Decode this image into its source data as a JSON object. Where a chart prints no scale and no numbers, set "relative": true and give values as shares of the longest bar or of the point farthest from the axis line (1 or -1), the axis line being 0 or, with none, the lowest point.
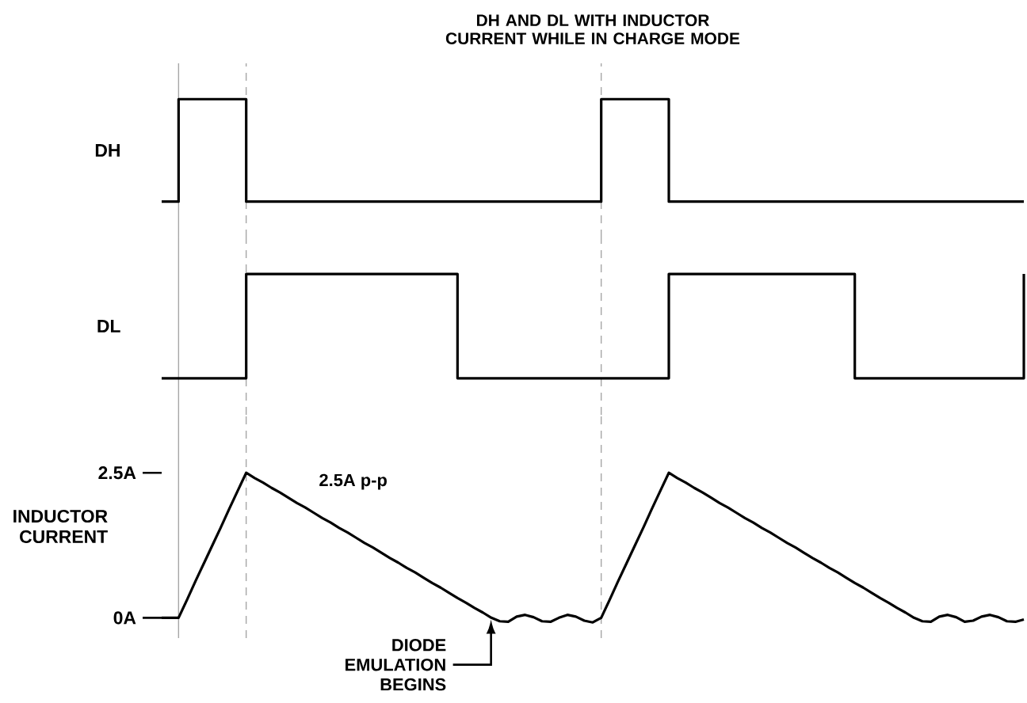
{
  "chart_data": [
    {
      "type": "step",
      "title": "DH AND DL WITH  INDUCTOR CURRENT WHILE IN CHARGE MODE",
      "ylabel": "DH",
      "relative": true,
      "tick_labels": false,
      "color": "#000000",
      "categories": [
        null,
        null,
        null,
        null,
        null,
        null,
        null,
        null,
        null,
        null,
        null,
        null,
        null,
        null,
        null,
        null,
        null,
        null,
        null,
        null,
        null,
        null,
        null,
        null,
        null,
        null,
        null,
        null,
        null,
        null,
        null,
        null,
        null,
        null,
        null,
        null,
        null,
        null,
        null,
        null,
        null,
        null,
        null,
        null,
        null,
        null,
        null,
        null,
        null,
        null,
        null,
        null,
        null,
        null,
        null,
        null,
        null,
        null,
        null,
        null,
        null,
        null,
        null,
        null,
        null,
        null,
        null,
        null,
        null,
        null,
        null,
        null,
        null,
        null,
        null,
        null,
        null,
        null,
        null,
        null,
        null,
        null,
        null,
        null,
        null,
        null,
        null,
        null,
        null,
        null,
        null,
        null,
        null,
        null,
        null,
        null,
        null,
        null,
        null,
        null,
        null,
        null,
        null
      ],
      "values": [
        0,
        0,
        1,
        1,
        1,
        1,
        1,
        1,
        1,
        1,
        0,
        0,
        0,
        0,
        0,
        0,
        0,
        0,
        0,
        0,
        0,
        0,
        0,
        0,
        0,
        0,
        0,
        0,
        0,
        0,
        0,
        0,
        0,
        0,
        0,
        0,
        0,
        0,
        0,
        0,
        0,
        0,
        0,
        0,
        0,
        0,
        0,
        0,
        0,
        0,
        0,
        0,
        1,
        1,
        1,
        1,
        1,
        1,
        1,
        1,
        0,
        0,
        0,
        0,
        0,
        0,
        0,
        0,
        0,
        0,
        0,
        0,
        0,
        0,
        0,
        0,
        0,
        0,
        0,
        0,
        0,
        0,
        0,
        0,
        0,
        0,
        0,
        0,
        0,
        0,
        0,
        0,
        0,
        0,
        0,
        0,
        0,
        0,
        0,
        0,
        0,
        0,
        0
      ]
    },
    {
      "type": "step",
      "ylabel": "DL",
      "relative": true,
      "tick_labels": false,
      "color": "#000000",
      "categories": [
        null,
        null,
        null,
        null,
        null,
        null,
        null,
        null,
        null,
        null,
        null,
        null,
        null,
        null,
        null,
        null,
        null,
        null,
        null,
        null,
        null,
        null,
        null,
        null,
        null,
        null,
        null,
        null,
        null,
        null,
        null,
        null,
        null,
        null,
        null,
        null,
        null,
        null,
        null,
        null,
        null,
        null,
        null,
        null,
        null,
        null,
        null,
        null,
        null,
        null,
        null,
        null,
        null,
        null,
        null,
        null,
        null,
        null,
        null,
        null,
        null,
        null,
        null,
        null,
        null,
        null,
        null,
        null,
        null,
        null,
        null,
        null,
        null,
        null,
        null,
        null,
        null,
        null,
        null,
        null,
        null,
        null,
        null,
        null,
        null,
        null,
        null,
        null,
        null,
        null,
        null,
        null,
        null,
        null,
        null,
        null,
        null,
        null,
        null,
        null,
        null,
        null,
        null
      ],
      "values": [
        0,
        0,
        0,
        0,
        0,
        0,
        0,
        0,
        0,
        0,
        1,
        1,
        1,
        1,
        1,
        1,
        1,
        1,
        1,
        1,
        1,
        1,
        1,
        1,
        1,
        1,
        1,
        1,
        1,
        1,
        1,
        1,
        1,
        1,
        1,
        0,
        0,
        0,
        0,
        0,
        0,
        0,
        0,
        0,
        0,
        0,
        0,
        0,
        0,
        0,
        0,
        0,
        0,
        0,
        0,
        0,
        0,
        0,
        0,
        0,
        1,
        1,
        1,
        1,
        1,
        1,
        1,
        1,
        1,
        1,
        1,
        1,
        1,
        1,
        1,
        1,
        1,
        1,
        1,
        1,
        1,
        1,
        0,
        0,
        0,
        0,
        0,
        0,
        0,
        0,
        0,
        0,
        0,
        0,
        0,
        0,
        0,
        0,
        0,
        0,
        0,
        0,
        1
      ]
    },
    {
      "type": "line",
      "ylabel": "INDUCTOR CURRENT",
      "tick_labels": "y",
      "ylim": [
        -0.35,
        3.5
      ],
      "yticks": [
        {
          "value": 0,
          "label": "0A"
        },
        {
          "value": 2.5,
          "label": "2.5A"
        }
      ],
      "color": "#000000",
      "categories": [
        null,
        null,
        null,
        null,
        null,
        null,
        null,
        null,
        null,
        null,
        null,
        null,
        null,
        null,
        null,
        null,
        null,
        null,
        null,
        null,
        null,
        null,
        null,
        null,
        null,
        null,
        null,
        null,
        null,
        null,
        null,
        null,
        null,
        null,
        null,
        null,
        null,
        null,
        null,
        null,
        null,
        null,
        null,
        null,
        null,
        null,
        null,
        null,
        null,
        null,
        null,
        null,
        null,
        null,
        null,
        null,
        null,
        null,
        null,
        null,
        null,
        null,
        null,
        null,
        null,
        null,
        null,
        null,
        null,
        null,
        null,
        null,
        null,
        null,
        null,
        null,
        null,
        null,
        null,
        null,
        null,
        null,
        null,
        null,
        null,
        null,
        null,
        null,
        null,
        null,
        null,
        null,
        null,
        null,
        null,
        null,
        null,
        null,
        null,
        null,
        null,
        null,
        null
      ],
      "values": [
        0,
        0,
        0,
        0.31,
        0.63,
        0.94,
        1.25,
        1.56,
        1.88,
        2.19,
        2.5,
        2.41,
        2.33,
        2.24,
        2.16,
        2.07,
        1.98,
        1.9,
        1.81,
        1.72,
        1.64,
        1.55,
        1.47,
        1.38,
        1.29,
        1.21,
        1.12,
        1.03,
        0.95,
        0.86,
        0.78,
        0.69,
        0.6,
        0.52,
        0.43,
        0.34,
        0.26,
        0.17,
        0.09,
        0,
        -0.06,
        -0.07,
        0.02,
        0.05,
        0.01,
        -0.06,
        -0.07,
        0,
        0.05,
        0.02,
        -0.05,
        -0.08,
        0,
        0.31,
        0.63,
        0.94,
        1.25,
        1.56,
        1.88,
        2.19,
        2.5,
        2.41,
        2.33,
        2.24,
        2.16,
        2.07,
        1.98,
        1.9,
        1.81,
        1.72,
        1.64,
        1.55,
        1.47,
        1.38,
        1.29,
        1.21,
        1.12,
        1.03,
        0.95,
        0.86,
        0.78,
        0.69,
        0.6,
        0.52,
        0.43,
        0.34,
        0.26,
        0.17,
        0.09,
        0,
        -0.06,
        -0.07,
        0.02,
        0.05,
        0.01,
        -0.07,
        -0.05,
        0.02,
        0.05,
        0.01,
        -0.06,
        -0.07,
        -0.03
      ],
      "annotations": [
        "2.5A p-p",
        "DIODE EMULATION BEGINS"
      ]
    }
  ]
}
